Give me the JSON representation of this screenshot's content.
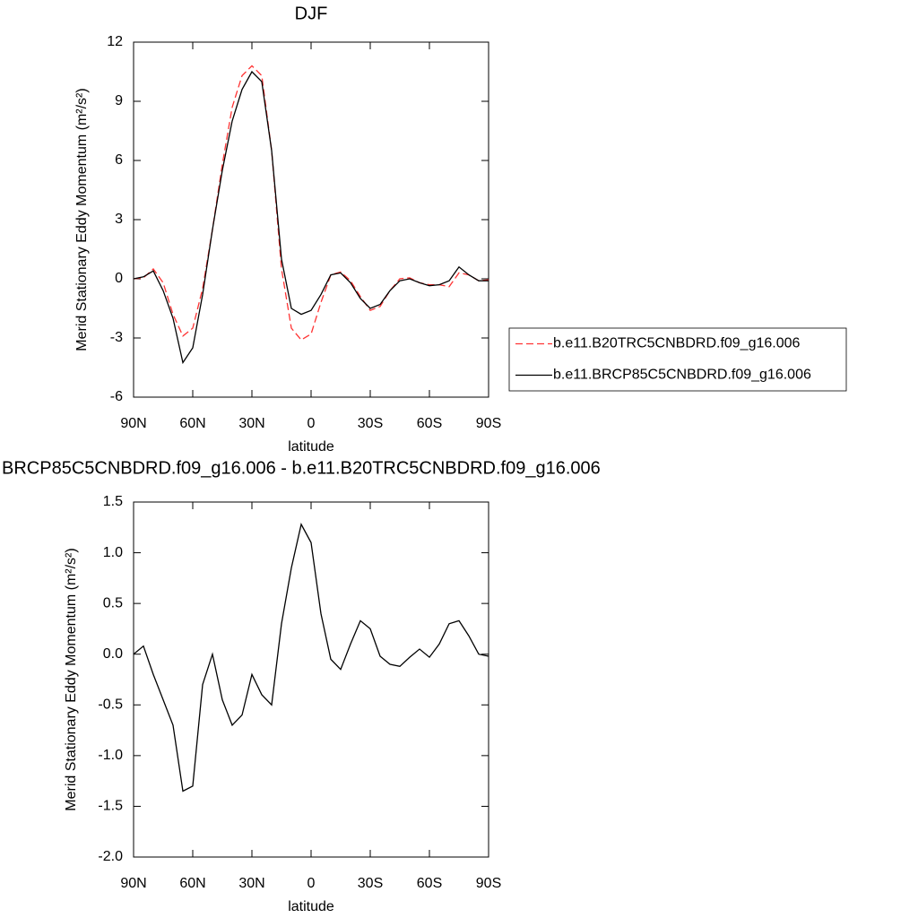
{
  "chart_data": [
    {
      "type": "line",
      "title": "DJF",
      "xlabel": "latitude",
      "ylabel": "Merid Stationary Eddy Momentum (m²/s²)",
      "x": [
        90,
        85,
        80,
        75,
        70,
        65,
        60,
        55,
        50,
        45,
        40,
        35,
        30,
        25,
        20,
        15,
        10,
        5,
        0,
        -5,
        -10,
        -15,
        -20,
        -25,
        -30,
        -35,
        -40,
        -45,
        -50,
        -55,
        -60,
        -65,
        -70,
        -75,
        -80,
        -85,
        -90
      ],
      "xlim": [
        90,
        -90
      ],
      "xticks": [
        {
          "value": 90,
          "label": "90N"
        },
        {
          "value": 60,
          "label": "60N"
        },
        {
          "value": 30,
          "label": "30N"
        },
        0,
        {
          "value": -30,
          "label": "30S"
        },
        {
          "value": -60,
          "label": "60S"
        },
        {
          "value": -90,
          "label": "90S"
        }
      ],
      "ylim": [
        -6,
        12
      ],
      "yticks": [
        -6,
        -3,
        0,
        3,
        6,
        9,
        12
      ],
      "legend": "outside-right",
      "series": [
        {
          "name": "b.e11.B20TRC5CNBDRD.f09_g16.006",
          "color": "#ff3333",
          "dashed": true,
          "values": [
            0,
            0.05,
            0.5,
            -0.2,
            -1.8,
            -2.9,
            -2.5,
            -0.5,
            2.5,
            5.8,
            8.7,
            10.3,
            10.8,
            10.3,
            6.5,
            0.5,
            -2.5,
            -3.1,
            -2.8,
            -1.2,
            0.2,
            0.35,
            -0.1,
            -0.9,
            -1.6,
            -1.4,
            -0.6,
            0,
            0.05,
            -0.2,
            -0.3,
            -0.3,
            -0.4,
            0.3,
            0.2,
            -0.1,
            -0.05
          ]
        },
        {
          "name": "b.e11.BRCP85C5CNBDRD.f09_g16.006",
          "color": "#000000",
          "dashed": false,
          "values": [
            0,
            0.1,
            0.4,
            -0.6,
            -2.0,
            -4.25,
            -3.5,
            -0.8,
            2.5,
            5.5,
            8.0,
            9.6,
            10.5,
            10.0,
            6.5,
            1.0,
            -1.5,
            -1.8,
            -1.6,
            -0.8,
            0.2,
            0.3,
            -0.2,
            -1.0,
            -1.5,
            -1.3,
            -0.6,
            -0.1,
            0,
            -0.2,
            -0.35,
            -0.3,
            -0.1,
            0.6,
            0.2,
            -0.1,
            -0.1
          ]
        }
      ]
    },
    {
      "type": "line",
      "title": "BRCP85C5CNBDRD.f09_g16.006 - b.e11.B20TRC5CNBDRD.f09_g16.006",
      "xlabel": "latitude",
      "ylabel": "Merid Stationary Eddy Momentum (m²/s²)",
      "x": [
        90,
        85,
        80,
        75,
        70,
        65,
        60,
        55,
        50,
        45,
        40,
        35,
        30,
        25,
        20,
        15,
        10,
        5,
        0,
        -5,
        -10,
        -15,
        -20,
        -25,
        -30,
        -35,
        -40,
        -45,
        -50,
        -55,
        -60,
        -65,
        -70,
        -75,
        -80,
        -85,
        -90
      ],
      "xlim": [
        90,
        -90
      ],
      "xticks": [
        {
          "value": 90,
          "label": "90N"
        },
        {
          "value": 60,
          "label": "60N"
        },
        {
          "value": 30,
          "label": "30N"
        },
        0,
        {
          "value": -30,
          "label": "30S"
        },
        {
          "value": -60,
          "label": "60S"
        },
        {
          "value": -90,
          "label": "90S"
        }
      ],
      "ylim": [
        -2,
        1.5
      ],
      "yticks": [
        {
          "value": -2,
          "label": "-2.0"
        },
        -1.5,
        {
          "value": -1,
          "label": "-1.0"
        },
        -0.5,
        {
          "value": 0,
          "label": "0.0"
        },
        0.5,
        {
          "value": 1,
          "label": "1.0"
        },
        1.5
      ],
      "series": [
        {
          "color": "#000000",
          "dashed": false,
          "values": [
            0,
            0.08,
            -0.2,
            -0.45,
            -0.7,
            -1.35,
            -1.3,
            -0.3,
            0,
            -0.45,
            -0.7,
            -0.6,
            -0.2,
            -0.4,
            -0.5,
            0.3,
            0.85,
            1.28,
            1.1,
            0.4,
            -0.05,
            -0.15,
            0.1,
            0.33,
            0.25,
            -0.02,
            -0.1,
            -0.12,
            -0.03,
            0.05,
            -0.03,
            0.1,
            0.3,
            0.33,
            0.18,
            0,
            -0.02
          ]
        }
      ]
    }
  ]
}
